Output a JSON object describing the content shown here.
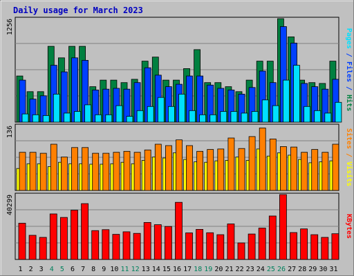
{
  "title": "Daily usage for March 2023",
  "colors": {
    "bg": "#c0c0c0",
    "plot_bg": "#c0c0c0",
    "title": "#0000c0",
    "hits": "#008040",
    "files": "#0040ff",
    "pages": "#00e0ff",
    "visits": "#ffff00",
    "sites": "#ff8000",
    "kbytes": "#ff0000",
    "weekend_label": "#00805c",
    "weekday_label": "#000000"
  },
  "chart_data": [
    {
      "type": "bar",
      "panel": "hits-files-pages",
      "categories": [
        "1",
        "2",
        "3",
        "4",
        "5",
        "6",
        "7",
        "8",
        "9",
        "10",
        "11",
        "12",
        "13",
        "14",
        "15",
        "16",
        "17",
        "18",
        "19",
        "20",
        "21",
        "22",
        "23",
        "24",
        "25",
        "26",
        "27",
        "28",
        "29",
        "30",
        "31"
      ],
      "ymax_label": "1256",
      "ylim": [
        0,
        1256
      ],
      "axis_label_parts": [
        {
          "text": "Pages",
          "color": "#00e0ff"
        },
        {
          "text": " / ",
          "color": "#0040ff"
        },
        {
          "text": "Files",
          "color": "#0040ff"
        },
        {
          "text": " / ",
          "color": "#0040ff"
        },
        {
          "text": "Hits",
          "color": "#008040"
        }
      ],
      "series": [
        {
          "name": "Hits",
          "color": "#008040",
          "values": [
            560,
            370,
            370,
            920,
            780,
            920,
            920,
            430,
            510,
            510,
            480,
            520,
            740,
            790,
            510,
            510,
            650,
            880,
            480,
            480,
            430,
            370,
            510,
            740,
            740,
            1256,
            1035,
            510,
            480,
            470,
            740
          ]
        },
        {
          "name": "Files",
          "color": "#0040ff",
          "values": [
            510,
            280,
            320,
            690,
            610,
            780,
            750,
            390,
            400,
            410,
            400,
            480,
            660,
            570,
            430,
            460,
            560,
            560,
            450,
            410,
            390,
            340,
            420,
            620,
            480,
            1160,
            960,
            470,
            430,
            400,
            520
          ]
        },
        {
          "name": "Pages",
          "color": "#00e0ff",
          "values": [
            100,
            90,
            80,
            340,
            110,
            130,
            210,
            90,
            90,
            200,
            70,
            140,
            190,
            300,
            190,
            340,
            140,
            90,
            90,
            130,
            130,
            110,
            130,
            270,
            200,
            510,
            690,
            190,
            140,
            110,
            240
          ]
        }
      ]
    },
    {
      "type": "bar",
      "panel": "visits-sites",
      "categories": [
        "1",
        "2",
        "3",
        "4",
        "5",
        "6",
        "7",
        "8",
        "9",
        "10",
        "11",
        "12",
        "13",
        "14",
        "15",
        "16",
        "17",
        "18",
        "19",
        "20",
        "21",
        "22",
        "23",
        "24",
        "25",
        "26",
        "27",
        "28",
        "29",
        "30",
        "31"
      ],
      "ymax_label": "136",
      "ylim": [
        0,
        136
      ],
      "axis_label_parts": [
        {
          "text": "Sites",
          "color": "#ff8000"
        },
        {
          "text": " / ",
          "color": "#ff8000"
        },
        {
          "text": "Visits",
          "color": "#ffff00"
        }
      ],
      "series": [
        {
          "name": "Visits",
          "color": "#ffff00",
          "values": [
            46,
            56,
            56,
            50,
            59,
            56,
            56,
            55,
            55,
            56,
            59,
            56,
            63,
            70,
            68,
            79,
            65,
            60,
            59,
            62,
            63,
            70,
            63,
            87,
            72,
            79,
            74,
            65,
            58,
            60,
            62
          ]
        },
        {
          "name": "Sites",
          "color": "#ff8000",
          "values": [
            80,
            80,
            78,
            97,
            70,
            90,
            90,
            78,
            78,
            80,
            82,
            80,
            85,
            97,
            94,
            106,
            94,
            82,
            86,
            87,
            110,
            88,
            113,
            131,
            108,
            92,
            91,
            80,
            86,
            80,
            97
          ]
        }
      ]
    },
    {
      "type": "bar",
      "panel": "kbytes",
      "categories": [
        "1",
        "2",
        "3",
        "4",
        "5",
        "6",
        "7",
        "8",
        "9",
        "10",
        "11",
        "12",
        "13",
        "14",
        "15",
        "16",
        "17",
        "18",
        "19",
        "20",
        "21",
        "22",
        "23",
        "24",
        "25",
        "26",
        "27",
        "28",
        "29",
        "30",
        "31"
      ],
      "ymax_label": "40299",
      "ylim": [
        0,
        40299
      ],
      "axis_label_parts": [
        {
          "text": "KBytes",
          "color": "#ff0000"
        }
      ],
      "series": [
        {
          "name": "KBytes",
          "color": "#ff0000",
          "values": [
            22500,
            15000,
            13700,
            28300,
            26100,
            30600,
            34700,
            17900,
            18500,
            15600,
            17200,
            16200,
            23000,
            21600,
            20500,
            35500,
            16500,
            18700,
            16600,
            15400,
            22100,
            10300,
            15800,
            19500,
            27000,
            40299,
            16700,
            19000,
            15400,
            13700,
            16000
          ]
        }
      ]
    }
  ],
  "x_labels": [
    {
      "text": "1",
      "weekend": false
    },
    {
      "text": "2",
      "weekend": false
    },
    {
      "text": "3",
      "weekend": false
    },
    {
      "text": "4",
      "weekend": true
    },
    {
      "text": "5",
      "weekend": true
    },
    {
      "text": "6",
      "weekend": false
    },
    {
      "text": "7",
      "weekend": false
    },
    {
      "text": "8",
      "weekend": false
    },
    {
      "text": "9",
      "weekend": false
    },
    {
      "text": "10",
      "weekend": false
    },
    {
      "text": "11",
      "weekend": true
    },
    {
      "text": "12",
      "weekend": true
    },
    {
      "text": "13",
      "weekend": false
    },
    {
      "text": "14",
      "weekend": false
    },
    {
      "text": "15",
      "weekend": false
    },
    {
      "text": "16",
      "weekend": false
    },
    {
      "text": "17",
      "weekend": false
    },
    {
      "text": "18",
      "weekend": true
    },
    {
      "text": "19",
      "weekend": true
    },
    {
      "text": "20",
      "weekend": false
    },
    {
      "text": "21",
      "weekend": false
    },
    {
      "text": "22",
      "weekend": false
    },
    {
      "text": "23",
      "weekend": false
    },
    {
      "text": "24",
      "weekend": false
    },
    {
      "text": "25",
      "weekend": true
    },
    {
      "text": "26",
      "weekend": true
    },
    {
      "text": "27",
      "weekend": false
    },
    {
      "text": "28",
      "weekend": false
    },
    {
      "text": "29",
      "weekend": false
    },
    {
      "text": "30",
      "weekend": false
    },
    {
      "text": "31",
      "weekend": false
    }
  ]
}
